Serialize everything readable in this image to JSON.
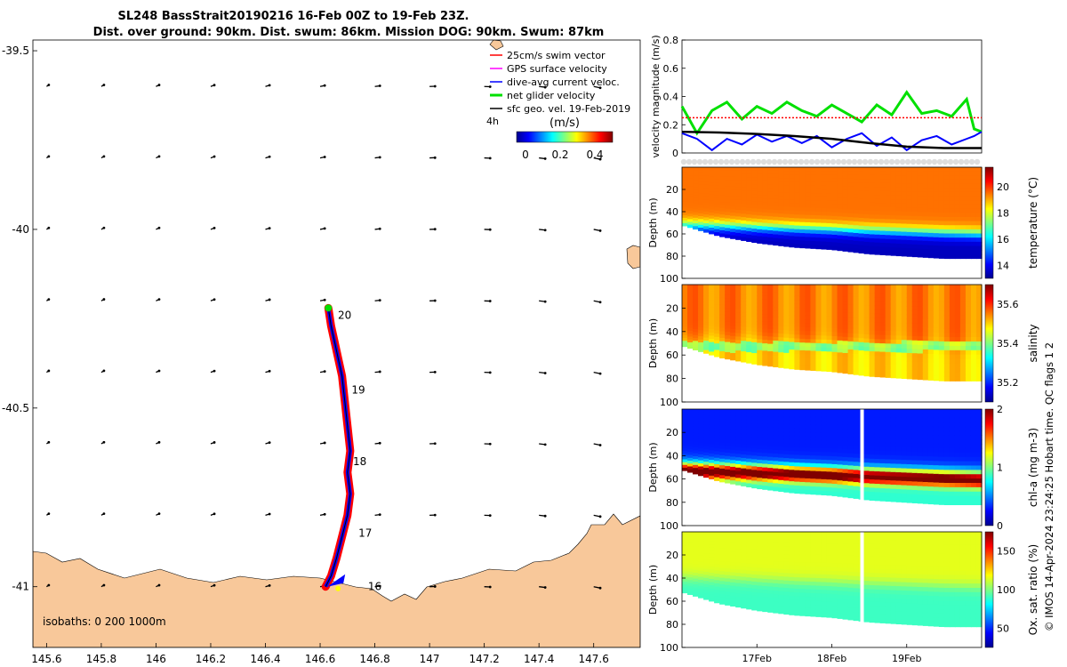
{
  "header": {
    "line1": "SL248 BassStrait20190216 16-Feb 00Z to 19-Feb 23Z.",
    "line2": "Dist. over ground: 90km. Dist. swum: 86km. Mission DOG: 90km. Swum: 87km"
  },
  "credit": "© IMOS 14-Apr-2024 23:24:25 Hobart time. QC flags 1  2",
  "colors": {
    "land": "#f8c89a",
    "track_red": "#ff0000",
    "track_blue": "#0000ff",
    "green": "#00e000",
    "black": "#000000",
    "swim_ref": "#ff0000",
    "gps": "#ff00ff"
  },
  "chart_data": [
    {
      "type": "scatter",
      "name": "map",
      "xlim": [
        145.55,
        147.77
      ],
      "ylim": [
        -41.17,
        -39.47
      ],
      "xticks": [
        145.6,
        145.8,
        146,
        146.2,
        146.4,
        146.6,
        146.8,
        147,
        147.2,
        147.4,
        147.6
      ],
      "xtick_labels": [
        "145.6",
        "145.8",
        "146",
        "146.2",
        "146.4",
        "146.6",
        "146.8",
        "147",
        "147.2",
        "147.4",
        "147.6"
      ],
      "yticks": [
        -39.5,
        -40,
        -40.5,
        -41
      ],
      "ytick_labels": [
        "-39.5",
        "-40",
        "-40.5",
        "-41"
      ],
      "legend": {
        "items": [
          {
            "label": "25cm/s swim vector",
            "color": "#ff0000"
          },
          {
            "label": "GPS surface velocity",
            "color": "#ff00ff"
          },
          {
            "label": "dive-avg current veloc.",
            "color": "#0000ff"
          },
          {
            "label": "net glider velocity",
            "color": "#00e000"
          },
          {
            "label": "sfc geo. vel. 19-Feb-2019",
            "color": "#000000"
          }
        ],
        "scale_label": "4h",
        "placement": "top-right"
      },
      "colorbar": {
        "title": "(m/s)",
        "ticks": [
          "0",
          "0.2",
          "0.4"
        ],
        "range": [
          0,
          0.5
        ]
      },
      "isobaths_label": "isobaths: 0   200  1000m",
      "track": [
        [
          146.62,
          -41.0
        ],
        [
          146.64,
          -40.97
        ],
        [
          146.66,
          -40.92
        ],
        [
          146.68,
          -40.86
        ],
        [
          146.7,
          -40.8
        ],
        [
          146.71,
          -40.74
        ],
        [
          146.7,
          -40.68
        ],
        [
          146.71,
          -40.62
        ],
        [
          146.7,
          -40.55
        ],
        [
          146.69,
          -40.48
        ],
        [
          146.68,
          -40.41
        ],
        [
          146.66,
          -40.34
        ],
        [
          146.64,
          -40.27
        ],
        [
          146.63,
          -40.22
        ]
      ],
      "day_labels": [
        {
          "text": "16",
          "lon": 146.775,
          "lat": -41.0
        },
        {
          "text": "17",
          "lon": 146.74,
          "lat": -40.85
        },
        {
          "text": "18",
          "lon": 146.72,
          "lat": -40.65
        },
        {
          "text": "19",
          "lon": 146.715,
          "lat": -40.45
        },
        {
          "text": "20",
          "lon": 146.665,
          "lat": -40.24
        }
      ],
      "vector_grid": {
        "lons": [
          145.6,
          145.8,
          146,
          146.2,
          146.4,
          146.6,
          146.8,
          147,
          147.2,
          147.4,
          147.6
        ],
        "lats": [
          -39.6,
          -39.8,
          -40.0,
          -40.2,
          -40.4,
          -40.6,
          -40.8,
          -41.0
        ]
      }
    },
    {
      "type": "line",
      "name": "velocity-magnitude",
      "ylabel": "velocity magnitude (m/s)",
      "ylim": [
        0,
        0.8
      ],
      "yticks": [
        0,
        0.2,
        0.4,
        0.6,
        0.8
      ],
      "xlim": [
        16.0,
        20.0
      ],
      "series": [
        {
          "color": "#00e000",
          "x": [
            16.0,
            16.2,
            16.4,
            16.6,
            16.8,
            17.0,
            17.2,
            17.4,
            17.6,
            17.8,
            18.0,
            18.2,
            18.4,
            18.6,
            18.8,
            19.0,
            19.2,
            19.4,
            19.6,
            19.8,
            19.9,
            20.0
          ],
          "values": [
            0.33,
            0.14,
            0.3,
            0.36,
            0.24,
            0.33,
            0.28,
            0.36,
            0.3,
            0.26,
            0.34,
            0.28,
            0.22,
            0.34,
            0.27,
            0.43,
            0.28,
            0.3,
            0.26,
            0.38,
            0.17,
            0.15
          ]
        },
        {
          "color": "#0000ff",
          "x": [
            16.0,
            16.2,
            16.4,
            16.6,
            16.8,
            17.0,
            17.2,
            17.4,
            17.6,
            17.8,
            18.0,
            18.2,
            18.4,
            18.6,
            18.8,
            19.0,
            19.2,
            19.4,
            19.6,
            19.8,
            19.9,
            20.0
          ],
          "values": [
            0.14,
            0.1,
            0.02,
            0.1,
            0.06,
            0.13,
            0.08,
            0.12,
            0.07,
            0.12,
            0.04,
            0.1,
            0.14,
            0.05,
            0.11,
            0.02,
            0.09,
            0.12,
            0.06,
            0.1,
            0.12,
            0.15
          ]
        },
        {
          "color": "#000000",
          "x": [
            16.0,
            16.5,
            17.0,
            17.5,
            18.0,
            18.5,
            19.0,
            19.5,
            20.0
          ],
          "values": [
            0.15,
            0.145,
            0.135,
            0.12,
            0.1,
            0.07,
            0.045,
            0.035,
            0.035
          ]
        },
        {
          "color": "#ff0000",
          "x": [
            16.0,
            20.0
          ],
          "values": [
            0.25,
            0.25
          ]
        }
      ]
    },
    {
      "type": "heatmap",
      "name": "temperature",
      "ylabel": "Depth (m)",
      "yticks": [
        20,
        40,
        60,
        80,
        100
      ],
      "ylim": [
        0,
        100
      ],
      "colorbar_label": "temperature (°C)",
      "colorbar_ticks": [
        14,
        16,
        18,
        20
      ],
      "colorbar_range": [
        13,
        21.5
      ],
      "surface_value": 19.5,
      "bottom_value": 13.5,
      "mixed_layer_depth": 52,
      "bottom_depth_x": [
        16.0,
        16.5,
        17.0,
        17.5,
        18.0,
        18.5,
        19.0,
        19.5,
        20.0
      ],
      "bottom_depth": [
        52,
        62,
        68,
        72,
        74,
        78,
        80,
        82,
        82
      ]
    },
    {
      "type": "heatmap",
      "name": "salinity",
      "ylabel": "Depth (m)",
      "yticks": [
        20,
        40,
        60,
        80,
        100
      ],
      "ylim": [
        0,
        100
      ],
      "colorbar_label": "salinity",
      "colorbar_ticks": [
        35.2,
        35.4,
        35.6
      ],
      "colorbar_range": [
        35.1,
        35.7
      ],
      "surface_value": 35.55,
      "bottom_value": 35.5,
      "mixed_layer_depth": 45,
      "bottom_depth_x": [
        16.0,
        16.5,
        17.0,
        17.5,
        18.0,
        18.5,
        19.0,
        19.5,
        20.0
      ],
      "bottom_depth": [
        52,
        62,
        68,
        72,
        74,
        78,
        80,
        82,
        82
      ]
    },
    {
      "type": "heatmap",
      "name": "chl-a",
      "ylabel": "Depth (m)",
      "yticks": [
        20,
        40,
        60,
        80,
        100
      ],
      "ylim": [
        0,
        100
      ],
      "colorbar_label": "chl-a (mg m-3)",
      "colorbar_ticks": [
        0,
        1,
        2
      ],
      "colorbar_range": [
        0,
        2
      ],
      "surface_value": 0.3,
      "bottom_value": 1.2,
      "mixed_layer_depth": 45,
      "bottom_depth_x": [
        16.0,
        16.5,
        17.0,
        17.5,
        18.0,
        18.5,
        19.0,
        19.5,
        20.0
      ],
      "bottom_depth": [
        52,
        62,
        68,
        72,
        74,
        78,
        80,
        82,
        82
      ]
    },
    {
      "type": "heatmap",
      "name": "oxygen",
      "ylabel": "Depth (m)",
      "yticks": [
        20,
        40,
        60,
        80,
        100
      ],
      "ylim": [
        0,
        100
      ],
      "colorbar_label": "Ox. sat. ratio (%)",
      "colorbar_ticks": [
        50,
        100,
        150
      ],
      "colorbar_range": [
        25,
        175
      ],
      "surface_value": 115,
      "bottom_value": 90,
      "mixed_layer_depth": 40,
      "bottom_depth_x": [
        16.0,
        16.5,
        17.0,
        17.5,
        18.0,
        18.5,
        19.0,
        19.5,
        20.0
      ],
      "bottom_depth": [
        52,
        62,
        68,
        72,
        74,
        78,
        80,
        82,
        82
      ],
      "xtick_labels": [
        "17Feb",
        "18Feb",
        "19Feb"
      ],
      "xticks": [
        17,
        18,
        19
      ]
    }
  ]
}
